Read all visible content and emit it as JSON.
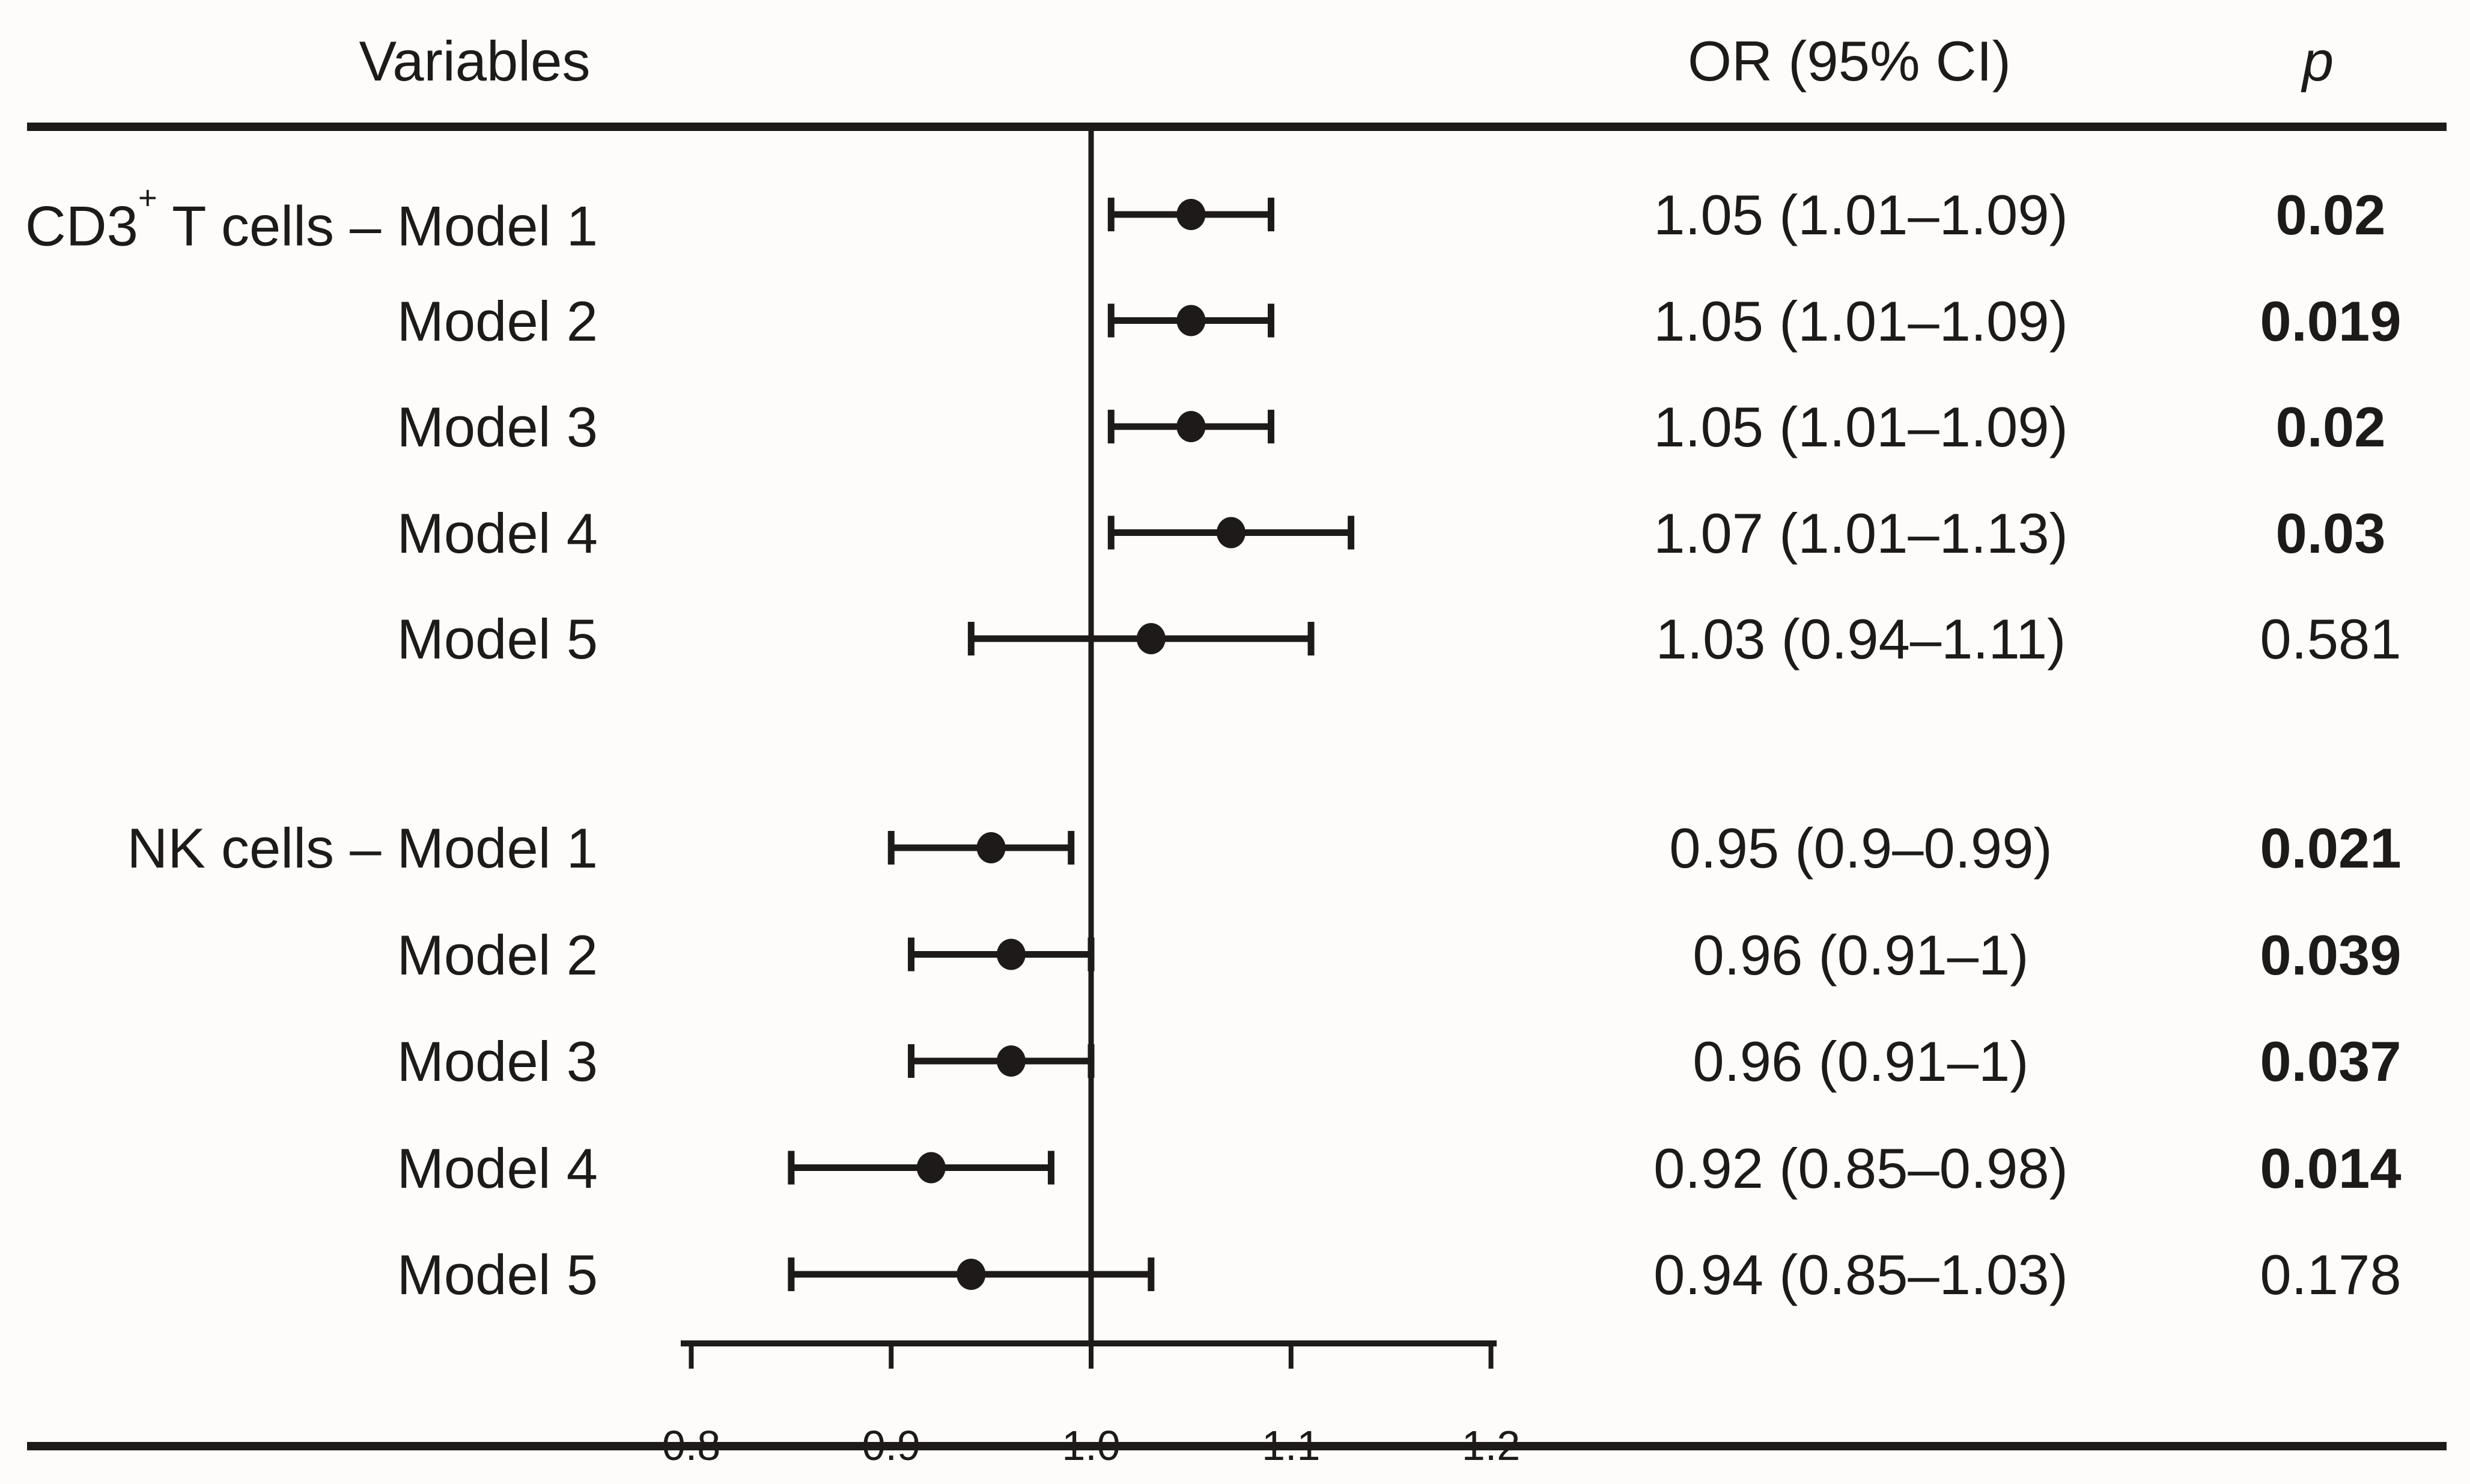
{
  "figure": {
    "background": "#fdfcfb",
    "ink_color": "#1e1a1a"
  },
  "header": {
    "variables_label": "Variables",
    "or_label": "OR (95% CI)",
    "p_label": "p"
  },
  "chart_data": {
    "type": "forest",
    "title": "",
    "xlabel": "",
    "x_axis": {
      "min": 0.8,
      "max": 1.2,
      "ticks": [
        0.8,
        0.9,
        1.0,
        1.1,
        1.2
      ],
      "tick_labels": [
        "0.8",
        "0.9",
        "1.0",
        "1.1",
        "1.2"
      ],
      "reference_line": 1.0,
      "grid": false
    },
    "groups": [
      {
        "name_parts": [
          {
            "text": "CD3"
          },
          {
            "text": "+",
            "sup": true
          },
          {
            "text": " T cells"
          }
        ],
        "separator": " – ",
        "rows": [
          {
            "model": "Model 1",
            "or": 1.05,
            "ci_low": 1.01,
            "ci_high": 1.09,
            "or_text": "1.05 (1.01–1.09)",
            "p_text": "0.02",
            "significant": true
          },
          {
            "model": "Model 2",
            "or": 1.05,
            "ci_low": 1.01,
            "ci_high": 1.09,
            "or_text": "1.05 (1.01–1.09)",
            "p_text": "0.019",
            "significant": true
          },
          {
            "model": "Model 3",
            "or": 1.05,
            "ci_low": 1.01,
            "ci_high": 1.09,
            "or_text": "1.05 (1.01–1.09)",
            "p_text": "0.02",
            "significant": true
          },
          {
            "model": "Model 4",
            "or": 1.07,
            "ci_low": 1.01,
            "ci_high": 1.13,
            "or_text": "1.07 (1.01–1.13)",
            "p_text": "0.03",
            "significant": true
          },
          {
            "model": "Model 5",
            "or": 1.03,
            "ci_low": 0.94,
            "ci_high": 1.11,
            "or_text": "1.03 (0.94–1.11)",
            "p_text": "0.581",
            "significant": false
          }
        ]
      },
      {
        "name_parts": [
          {
            "text": "NK cells"
          }
        ],
        "separator": " – ",
        "rows": [
          {
            "model": "Model 1",
            "or": 0.95,
            "ci_low": 0.9,
            "ci_high": 0.99,
            "or_text": "0.95 (0.9–0.99)",
            "p_text": "0.021",
            "significant": true
          },
          {
            "model": "Model 2",
            "or": 0.96,
            "ci_low": 0.91,
            "ci_high": 1.0,
            "or_text": "0.96 (0.91–1)",
            "p_text": "0.039",
            "significant": true
          },
          {
            "model": "Model 3",
            "or": 0.96,
            "ci_low": 0.91,
            "ci_high": 1.0,
            "or_text": "0.96 (0.91–1)",
            "p_text": "0.037",
            "significant": true
          },
          {
            "model": "Model 4",
            "or": 0.92,
            "ci_low": 0.85,
            "ci_high": 0.98,
            "or_text": "0.92 (0.85–0.98)",
            "p_text": "0.014",
            "significant": true
          },
          {
            "model": "Model 5",
            "or": 0.94,
            "ci_low": 0.85,
            "ci_high": 1.03,
            "or_text": "0.94 (0.85–1.03)",
            "p_text": "0.178",
            "significant": false
          }
        ]
      }
    ]
  }
}
